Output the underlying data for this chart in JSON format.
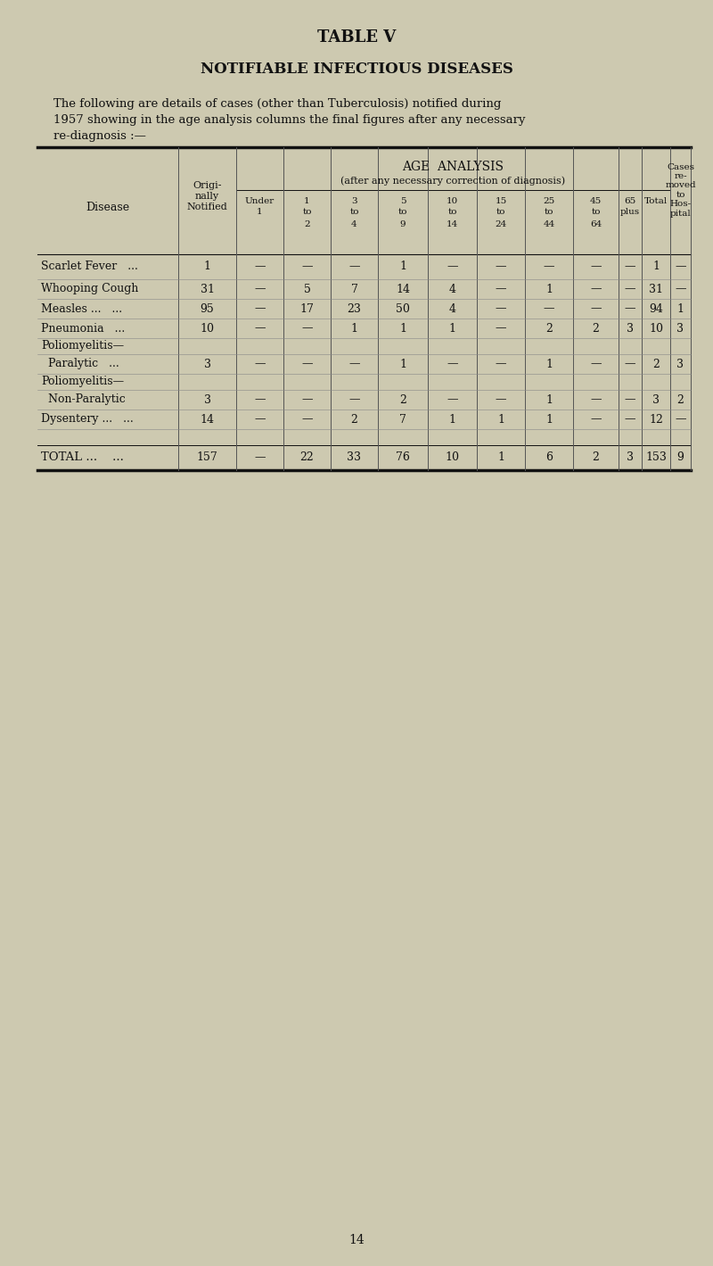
{
  "page_title": "TABLE V",
  "section_title": "NOTIFIABLE INFECTIOUS DISEASES",
  "intro_text_line1": "The following are details of cases (other than Tuberculosis) notified during",
  "intro_text_line2": "1957 showing in the age analysis columns the final figures after any necessary",
  "intro_text_line3": "re-diagnosis :—",
  "rows": [
    {
      "disease1": "Scarlet Fever",
      "disease2": "...",
      "notified": "1",
      "under1": "—",
      "to2": "—",
      "to4": "—",
      "to9": "1",
      "to14": "—",
      "to24": "—",
      "to44": "—",
      "to64": "—",
      "plus": "—",
      "total": "1",
      "hosp": "—"
    },
    {
      "disease1": "Whooping Cough",
      "disease2": "",
      "notified": "31",
      "under1": "—",
      "to2": "5",
      "to4": "7",
      "to9": "14",
      "to14": "4",
      "to24": "—",
      "to44": "1",
      "to64": "—",
      "plus": "—",
      "total": "31",
      "hosp": "—"
    },
    {
      "disease1": "Measles ...",
      "disease2": "...",
      "notified": "95",
      "under1": "—",
      "to2": "17",
      "to4": "23",
      "to9": "50",
      "to14": "4",
      "to24": "—",
      "to44": "—",
      "to64": "—",
      "plus": "—",
      "total": "94",
      "hosp": "1"
    },
    {
      "disease1": "Pneumonia",
      "disease2": "...",
      "notified": "10",
      "under1": "—",
      "to2": "—",
      "to4": "1",
      "to9": "1",
      "to14": "1",
      "to24": "—",
      "to44": "2",
      "to64": "2",
      "plus": "3",
      "total": "10",
      "hosp": "3"
    },
    {
      "disease1": "Poliomyelitis—",
      "disease2": "",
      "notified": "",
      "under1": "",
      "to2": "",
      "to4": "",
      "to9": "",
      "to14": "",
      "to24": "",
      "to44": "",
      "to64": "",
      "plus": "",
      "total": "",
      "hosp": ""
    },
    {
      "disease1": "  Paralytic",
      "disease2": "...",
      "notified": "3",
      "under1": "—",
      "to2": "—",
      "to4": "—",
      "to9": "1",
      "to14": "—",
      "to24": "—",
      "to44": "1",
      "to64": "—",
      "plus": "—",
      "total": "2",
      "hosp": "3"
    },
    {
      "disease1": "Poliomyelitis—",
      "disease2": "",
      "notified": "",
      "under1": "",
      "to2": "",
      "to4": "",
      "to9": "",
      "to14": "",
      "to24": "",
      "to44": "",
      "to64": "",
      "plus": "",
      "total": "",
      "hosp": ""
    },
    {
      "disease1": "  Non-Paralytic",
      "disease2": "",
      "notified": "3",
      "under1": "—",
      "to2": "—",
      "to4": "—",
      "to9": "2",
      "to14": "—",
      "to24": "—",
      "to44": "1",
      "to64": "—",
      "plus": "—",
      "total": "3",
      "hosp": "2"
    },
    {
      "disease1": "Dysentery ...",
      "disease2": "...",
      "notified": "14",
      "under1": "—",
      "to2": "—",
      "to4": "2",
      "to9": "7",
      "to14": "1",
      "to24": "1",
      "to44": "1",
      "to64": "—",
      "plus": "—",
      "total": "12",
      "hosp": "—"
    }
  ],
  "total_row": {
    "notified": "157",
    "under1": "—",
    "to2": "22",
    "to4": "33",
    "to9": "76",
    "to14": "10",
    "to24": "1",
    "to44": "6",
    "to64": "2",
    "plus": "3",
    "total": "153",
    "hosp": "9"
  },
  "page_number": "14",
  "bg_color": "#cdc9b0",
  "text_color": "#111111"
}
